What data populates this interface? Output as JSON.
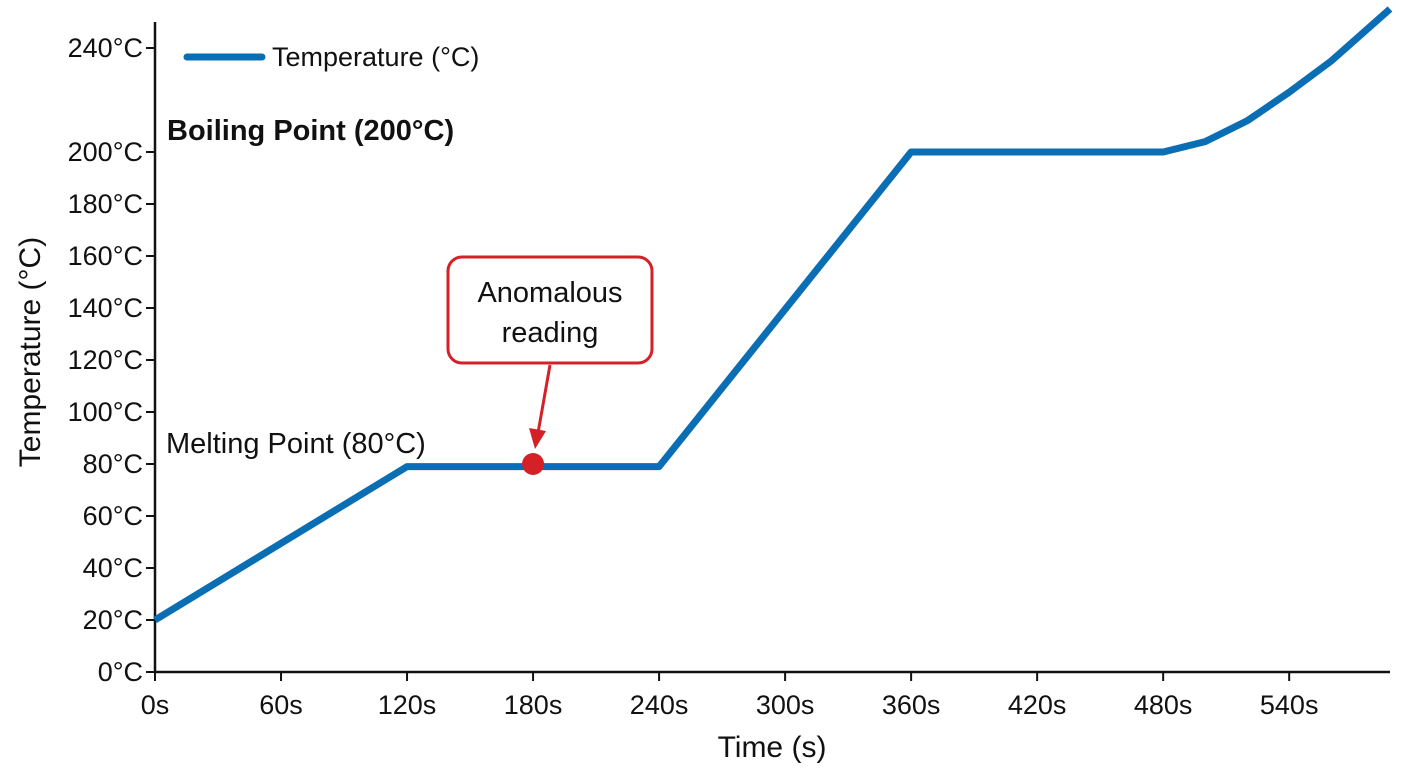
{
  "chart_data": {
    "type": "line",
    "title": "",
    "xlabel": "Time (s)",
    "ylabel": "Temperature (°C)",
    "xlim": [
      0,
      588
    ],
    "ylim": [
      0,
      250
    ],
    "x_ticks": [
      0,
      60,
      120,
      180,
      240,
      300,
      360,
      420,
      480,
      540
    ],
    "x_tick_labels": [
      "0s",
      "60s",
      "120s",
      "180s",
      "240s",
      "300s",
      "360s",
      "420s",
      "480s",
      "540s"
    ],
    "y_ticks": [
      0,
      20,
      40,
      60,
      80,
      100,
      120,
      140,
      160,
      180,
      200,
      240
    ],
    "y_tick_labels": [
      "0°C",
      "20°C",
      "40°C",
      "60°C",
      "80°C",
      "100°C",
      "120°C",
      "140°C",
      "160°C",
      "180°C",
      "200°C",
      "240°C"
    ],
    "grid": false,
    "legend_position": "top-left",
    "series": [
      {
        "name": "Temperature (°C)",
        "color": "#0a6eb4",
        "x": [
          0,
          120,
          240,
          360,
          480,
          500,
          520,
          540,
          560,
          588
        ],
        "y": [
          20,
          79,
          79,
          200,
          200,
          204,
          212,
          223,
          235,
          255
        ]
      }
    ],
    "annotations": [
      {
        "text": "Boiling Point (200°C)",
        "style": "bold"
      },
      {
        "text": "Melting Point (80°C)",
        "style": "plain"
      }
    ],
    "callout": {
      "lines": [
        "Anomalous",
        "reading"
      ],
      "point": {
        "x": 180,
        "y": 80
      },
      "color": "#d42027"
    }
  }
}
